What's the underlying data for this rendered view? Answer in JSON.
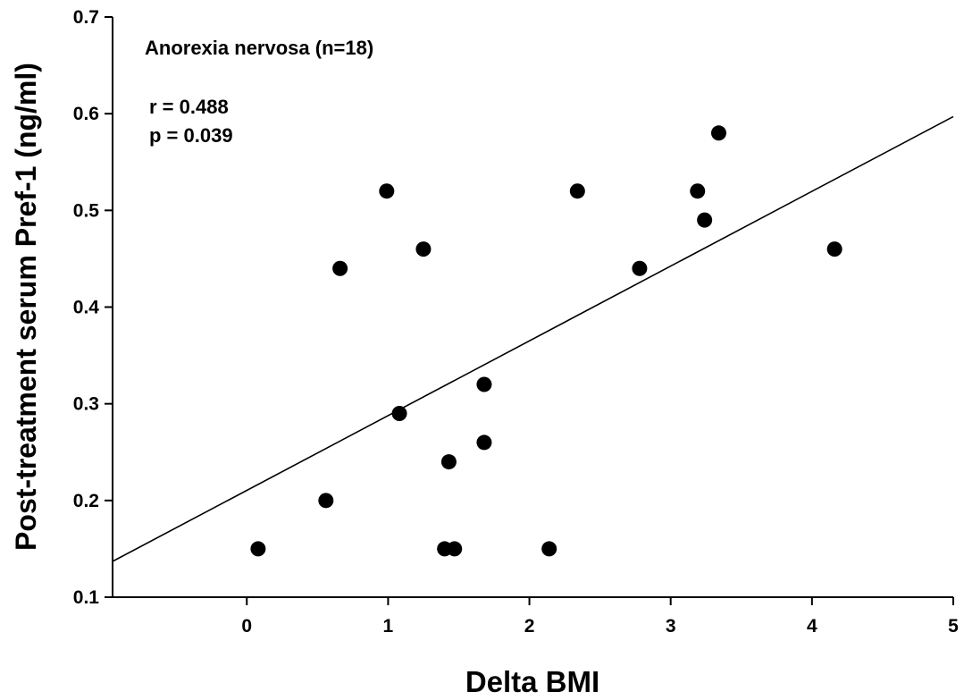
{
  "chart_data": {
    "type": "scatter",
    "title": "",
    "xlabel": "Delta BMI",
    "ylabel": "Post-treatment serum Pref-1 (ng/ml)",
    "xlim": [
      -0.95,
      5
    ],
    "ylim": [
      0.1,
      0.7
    ],
    "x_ticks": [
      0,
      1,
      2,
      3,
      4,
      5
    ],
    "y_ticks": [
      0.1,
      0.2,
      0.3,
      0.4,
      0.5,
      0.6,
      0.7
    ],
    "x_tick_labels": [
      "0",
      "1",
      "2",
      "3",
      "4",
      "5"
    ],
    "y_tick_labels": [
      "0.1",
      "0.2",
      "0.3",
      "0.4",
      "0.5",
      "0.6",
      "0.7"
    ],
    "grid": false,
    "legend": "none",
    "annotations": [
      "Anorexia nervosa (n=18)",
      "r = 0.488",
      "p = 0.039"
    ],
    "series": [
      {
        "points": [
          {
            "x": 0.08,
            "y": 0.15
          },
          {
            "x": 0.56,
            "y": 0.2
          },
          {
            "x": 0.66,
            "y": 0.44
          },
          {
            "x": 0.99,
            "y": 0.52
          },
          {
            "x": 1.08,
            "y": 0.29
          },
          {
            "x": 1.25,
            "y": 0.46
          },
          {
            "x": 1.4,
            "y": 0.15
          },
          {
            "x": 1.43,
            "y": 0.24
          },
          {
            "x": 1.47,
            "y": 0.15
          },
          {
            "x": 1.68,
            "y": 0.32
          },
          {
            "x": 1.68,
            "y": 0.26
          },
          {
            "x": 2.14,
            "y": 0.15
          },
          {
            "x": 2.34,
            "y": 0.52
          },
          {
            "x": 2.78,
            "y": 0.44
          },
          {
            "x": 3.19,
            "y": 0.52
          },
          {
            "x": 3.24,
            "y": 0.49
          },
          {
            "x": 3.34,
            "y": 0.58
          },
          {
            "x": 4.16,
            "y": 0.46
          }
        ],
        "color": "#000000"
      }
    ],
    "regression_line": {
      "x": [
        -0.95,
        5
      ],
      "y": [
        0.137,
        0.597
      ],
      "color": "#000000"
    }
  }
}
